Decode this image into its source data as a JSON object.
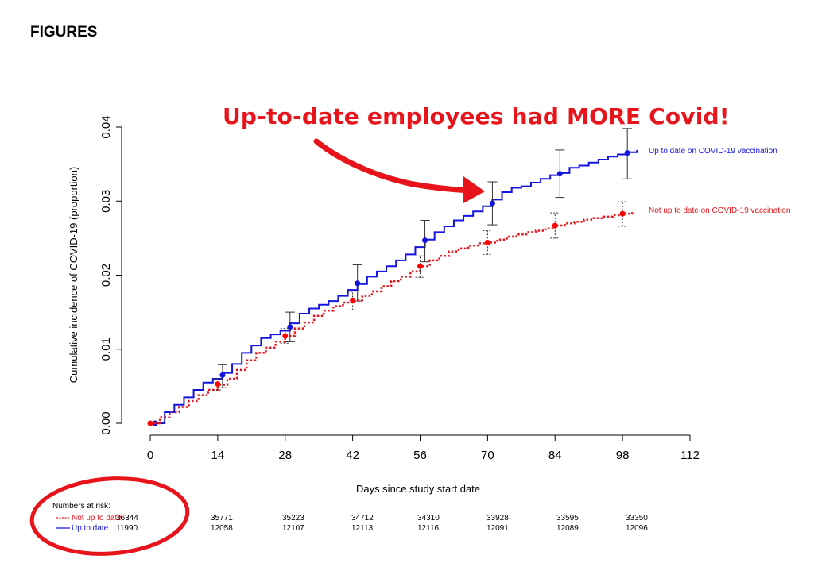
{
  "page": {
    "heading": "FIGURES",
    "annotation": "Up-to-date employees had MORE Covid!"
  },
  "colors": {
    "up_to_date": "#1414e0",
    "not_up_to_date": "#e8141b",
    "annotation_red": "#e8141b",
    "marker_red": "#ff0000"
  },
  "chart_data": {
    "type": "line",
    "title": "",
    "xlabel": "Days since study start date",
    "ylabel": "Cumulative incidence of COVID-19 (proportion)",
    "xlim": [
      0,
      112
    ],
    "ylim": [
      0,
      0.04
    ],
    "x_ticks": [
      0,
      14,
      28,
      42,
      56,
      70,
      84,
      98,
      112
    ],
    "y_ticks": [
      0.0,
      0.01,
      0.02,
      0.03,
      0.04
    ],
    "y_tick_labels": [
      "0.00",
      "0.01",
      "0.02",
      "0.03",
      "0.04"
    ],
    "grid": false,
    "series": [
      {
        "name": "Up to date on COVID-19 vaccination",
        "key": "up_to_date",
        "style": "solid",
        "x": [
          0,
          1,
          3,
          5,
          7,
          9,
          11,
          13,
          15,
          17,
          19,
          21,
          23,
          25,
          27,
          29,
          31,
          33,
          35,
          37,
          39,
          41,
          43,
          45,
          47,
          49,
          51,
          53,
          55,
          57,
          59,
          61,
          63,
          65,
          67,
          69,
          71,
          73,
          75,
          77,
          79,
          81,
          83,
          85,
          87,
          89,
          91,
          93,
          95,
          97,
          99,
          101
        ],
        "y": [
          0.0,
          0.0,
          0.0015,
          0.0025,
          0.0035,
          0.0045,
          0.0055,
          0.006,
          0.0068,
          0.008,
          0.0095,
          0.0105,
          0.0115,
          0.012,
          0.0125,
          0.0135,
          0.0148,
          0.0155,
          0.016,
          0.0165,
          0.0172,
          0.018,
          0.0188,
          0.0198,
          0.0205,
          0.0212,
          0.022,
          0.0228,
          0.0238,
          0.0248,
          0.0258,
          0.0266,
          0.0274,
          0.028,
          0.0286,
          0.0293,
          0.0302,
          0.0312,
          0.0318,
          0.032,
          0.0325,
          0.033,
          0.0335,
          0.0338,
          0.0345,
          0.0348,
          0.0352,
          0.0356,
          0.036,
          0.0363,
          0.0366,
          0.0369
        ],
        "markers_x": [
          1,
          15,
          29,
          43,
          57,
          71,
          85,
          99
        ],
        "markers_y": [
          0.0,
          0.0065,
          0.013,
          0.0189,
          0.0247,
          0.0297,
          0.0337,
          0.0365
        ],
        "err_low": [
          0.0,
          0.0048,
          0.011,
          0.0165,
          0.0218,
          0.0268,
          0.0305,
          0.033
        ],
        "err_high": [
          0.0,
          0.0079,
          0.015,
          0.0214,
          0.0274,
          0.0326,
          0.0369,
          0.0398
        ]
      },
      {
        "name": "Not up to date on COVID-19 vaccination",
        "key": "not_up_to_date",
        "style": "dotted",
        "x": [
          0,
          2,
          4,
          6,
          8,
          10,
          12,
          14,
          16,
          18,
          20,
          22,
          24,
          26,
          28,
          30,
          32,
          34,
          36,
          38,
          40,
          42,
          44,
          46,
          48,
          50,
          52,
          54,
          56,
          58,
          60,
          62,
          64,
          66,
          68,
          70,
          72,
          74,
          76,
          78,
          80,
          82,
          84,
          86,
          88,
          90,
          92,
          94,
          96,
          98,
          100
        ],
        "y": [
          0.0,
          0.0008,
          0.0015,
          0.0022,
          0.003,
          0.0038,
          0.0045,
          0.0052,
          0.006,
          0.0072,
          0.0085,
          0.0095,
          0.0102,
          0.011,
          0.0118,
          0.0128,
          0.0136,
          0.0145,
          0.0152,
          0.0158,
          0.0163,
          0.0166,
          0.0172,
          0.0178,
          0.0185,
          0.0192,
          0.0198,
          0.0205,
          0.0212,
          0.022,
          0.0226,
          0.0232,
          0.0236,
          0.024,
          0.0243,
          0.0244,
          0.0248,
          0.0252,
          0.0255,
          0.0258,
          0.026,
          0.0263,
          0.0267,
          0.027,
          0.0272,
          0.0275,
          0.0277,
          0.0279,
          0.0281,
          0.0283,
          0.0285
        ],
        "markers_x": [
          0,
          14,
          28,
          42,
          56,
          70,
          84,
          98
        ],
        "markers_y": [
          0.0,
          0.0053,
          0.0118,
          0.0166,
          0.0212,
          0.0244,
          0.0267,
          0.0283
        ],
        "err_low": [
          0.0,
          0.0045,
          0.0108,
          0.0153,
          0.0197,
          0.0228,
          0.025,
          0.0266
        ],
        "err_high": [
          0.0,
          0.006,
          0.0128,
          0.0178,
          0.0226,
          0.026,
          0.0284,
          0.0299
        ]
      }
    ],
    "legend": {
      "placement": "right",
      "entries": [
        "Up to date on COVID-19 vaccination",
        "Not up to date on COVID-19 vaccination"
      ]
    },
    "risk_table": {
      "title": "Numbers at risk:",
      "rows": [
        {
          "label": "Not up to date",
          "key": "not_up_to_date",
          "values": [
            "36344",
            "35771",
            "35223",
            "34712",
            "34310",
            "33928",
            "33595",
            "33350"
          ]
        },
        {
          "label": "Up to date",
          "key": "up_to_date",
          "values": [
            "11990",
            "12058",
            "12107",
            "12113",
            "12116",
            "12091",
            "12089",
            "12096"
          ]
        }
      ]
    }
  }
}
